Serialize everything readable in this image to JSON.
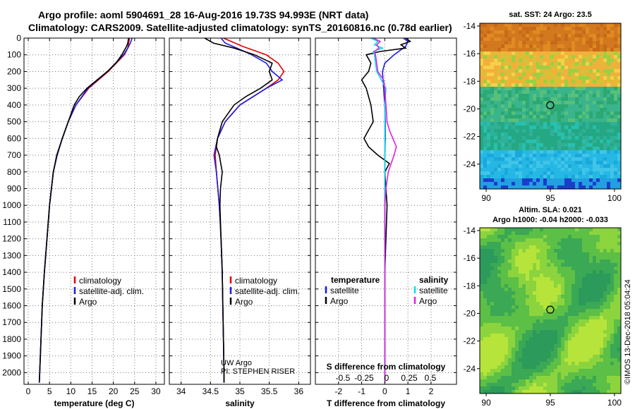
{
  "header": {
    "line1": "Argo profile: aoml 5904691_28 16-Aug-2016 19.73S 94.993E (NRT data)",
    "line2": "Climatology: CARS2009. Satellite-adjusted climatology: synTS_20160816.nc (0.78d earlier)"
  },
  "colors": {
    "climatology": "#e00000",
    "satellite": "#1a1adf",
    "argo": "#000000",
    "salinity_sat": "#00e0e8",
    "salinity_argo": "#e020e0",
    "marker": "#000000"
  },
  "credit": {
    "line1": "UW Argo",
    "line2": "PI: STEPHEN RISER"
  },
  "watermark": "©IMOS 13-Dec-2018 05:04:24",
  "chart_data": [
    {
      "id": "temperature",
      "type": "line",
      "xlabel": "temperature (deg C)",
      "ylabel": "",
      "xlim": [
        -1,
        32
      ],
      "ylim": [
        2070,
        0
      ],
      "xticks": [
        0,
        5,
        10,
        15,
        20,
        25,
        30
      ],
      "yticks": [
        0,
        100,
        200,
        300,
        400,
        500,
        600,
        700,
        800,
        900,
        1000,
        1100,
        1200,
        1300,
        1400,
        1500,
        1600,
        1700,
        1800,
        1900,
        2000
      ],
      "legend": [
        "climatology",
        "satellite-adj. clim.",
        "Argo"
      ],
      "series": [
        {
          "name": "climatology",
          "depth": [
            0,
            60,
            100,
            200,
            300,
            400,
            500,
            600,
            700,
            800,
            1000,
            1200,
            1400,
            1600,
            1800,
            2000,
            2060
          ],
          "values": [
            23.8,
            23.4,
            22.6,
            18.8,
            14.2,
            11.2,
            9.4,
            8.0,
            6.8,
            5.9,
            5.0,
            4.4,
            3.8,
            3.3,
            3.0,
            2.7,
            2.6
          ]
        },
        {
          "name": "satellite-adj. clim.",
          "depth": [
            0,
            30,
            60,
            100,
            200,
            300,
            400,
            500,
            600,
            700,
            800,
            1000,
            1200,
            1400,
            1600,
            1800,
            2000,
            2060
          ],
          "values": [
            24.4,
            24.0,
            23.4,
            22.4,
            18.6,
            14.0,
            11.2,
            9.4,
            8.0,
            6.8,
            5.9,
            5.0,
            4.4,
            3.8,
            3.3,
            3.0,
            2.7,
            2.6
          ]
        },
        {
          "name": "Argo",
          "depth": [
            0,
            30,
            50,
            100,
            150,
            200,
            250,
            300,
            350,
            400,
            500,
            600,
            700,
            800,
            1000,
            1200,
            1400,
            1600,
            1800,
            2000,
            2060
          ],
          "values": [
            23.6,
            23.4,
            23.1,
            22.0,
            20.6,
            18.6,
            16.2,
            13.8,
            12.0,
            10.8,
            9.4,
            8.0,
            6.7,
            5.9,
            5.0,
            4.4,
            3.8,
            3.3,
            3.0,
            2.7,
            2.6
          ]
        }
      ]
    },
    {
      "id": "salinity",
      "type": "line",
      "xlabel": "salinity",
      "xlim": [
        33.8,
        36.2
      ],
      "ylim": [
        2070,
        0
      ],
      "xticks": [
        34,
        34.5,
        35,
        35.5,
        36
      ],
      "legend": [
        "climatology",
        "satellite-adj. clim.",
        "Argo"
      ],
      "series": [
        {
          "name": "climatology",
          "depth": [
            0,
            50,
            100,
            150,
            200,
            250,
            300,
            400,
            500,
            600,
            700,
            800,
            1000,
            1200,
            1400,
            1600,
            1800,
            2000,
            2060
          ],
          "values": [
            34.72,
            35.05,
            35.45,
            35.65,
            35.75,
            35.65,
            35.45,
            35.0,
            34.75,
            34.62,
            34.58,
            34.6,
            34.65,
            34.68,
            34.7,
            34.71,
            34.72,
            34.73,
            34.73
          ]
        },
        {
          "name": "satellite-adj. clim.",
          "depth": [
            0,
            30,
            60,
            100,
            150,
            200,
            250,
            300,
            400,
            500,
            600,
            700,
            800,
            1000,
            1200,
            1400,
            1600,
            1800,
            2000,
            2060
          ],
          "values": [
            34.68,
            34.75,
            34.95,
            35.2,
            35.45,
            35.55,
            35.72,
            35.45,
            35.0,
            34.75,
            34.62,
            34.56,
            34.6,
            34.65,
            34.68,
            34.7,
            34.71,
            34.72,
            34.73,
            34.73
          ]
        },
        {
          "name": "Argo",
          "depth": [
            0,
            30,
            60,
            100,
            150,
            200,
            250,
            300,
            350,
            400,
            500,
            600,
            650,
            700,
            800,
            900,
            1000,
            1200,
            1400,
            1600,
            1800,
            2000,
            2060
          ],
          "values": [
            34.4,
            34.55,
            34.9,
            35.25,
            35.55,
            35.5,
            35.55,
            35.35,
            35.1,
            34.9,
            34.7,
            34.62,
            34.6,
            34.65,
            34.7,
            34.67,
            34.66,
            34.68,
            34.7,
            34.71,
            34.72,
            34.73,
            34.73
          ]
        }
      ]
    },
    {
      "id": "difference",
      "type": "line",
      "xlabel": "T difference from climatology",
      "secondary_xlabel": "S difference from climatology",
      "xlim": [
        -3,
        3.1
      ],
      "ylim": [
        2070,
        0
      ],
      "xticks": [
        -2,
        -1,
        0,
        1,
        2
      ],
      "secondary_xticks": [
        "-0.5",
        "-0.25",
        "0",
        "0.25",
        "0.5"
      ],
      "legend_left": {
        "title": "temperature",
        "items": [
          "satellite",
          "Argo"
        ]
      },
      "legend_right": {
        "title": "salinity",
        "items": [
          "satellite",
          "Argo"
        ]
      },
      "series": [
        {
          "name": "T satellite",
          "depth": [
            0,
            20,
            50,
            100,
            150,
            200,
            300,
            400,
            500,
            600,
            700,
            800,
            900,
            1000,
            1200,
            1400,
            1600,
            1800,
            2000,
            2060
          ],
          "values": [
            0.8,
            1.0,
            0.9,
            0.4,
            0.0,
            -0.1,
            -0.05,
            0.0,
            0.02,
            0.02,
            0.0,
            0.0,
            0.0,
            0.0,
            0.0,
            0.0,
            0.0,
            0.0,
            0.0,
            0.0
          ]
        },
        {
          "name": "T Argo",
          "depth": [
            0,
            20,
            40,
            60,
            80,
            100,
            150,
            200,
            250,
            300,
            400,
            500,
            550,
            600,
            650,
            700,
            750,
            800,
            900,
            1000,
            1200,
            1400,
            1600,
            1800,
            2000,
            2060
          ],
          "values": [
            0.9,
            1.1,
            0.7,
            0.9,
            -0.2,
            -0.8,
            -0.6,
            -0.7,
            -1.0,
            -0.8,
            -0.6,
            -0.5,
            -0.7,
            -0.9,
            -0.7,
            -0.3,
            0.2,
            0.0,
            0.05,
            0.1,
            0.05,
            0.0,
            0.0,
            0.0,
            0.0,
            0.0
          ]
        },
        {
          "name": "S satellite",
          "depth": [
            0,
            20,
            40,
            60,
            80,
            100,
            150,
            200,
            300,
            400,
            500,
            600,
            700,
            800,
            900,
            1000,
            1200,
            1400,
            1600,
            1800,
            2000,
            2060
          ],
          "values": [
            -0.6,
            -0.3,
            -0.45,
            -0.1,
            -0.5,
            -0.45,
            -0.4,
            -0.35,
            0.05,
            0.0,
            0.0,
            0.0,
            0.0,
            0.0,
            0.0,
            0.0,
            0.0,
            0.0,
            0.0,
            0.0,
            0.0,
            0.0
          ]
        },
        {
          "name": "S Argo",
          "depth": [
            0,
            20,
            40,
            60,
            80,
            100,
            150,
            200,
            250,
            300,
            400,
            500,
            550,
            600,
            650,
            700,
            800,
            900,
            1000,
            1200,
            1400,
            1600,
            1800,
            2000,
            2060
          ],
          "values": [
            -0.5,
            -0.2,
            -0.35,
            -0.25,
            -0.45,
            -0.4,
            -0.35,
            -0.3,
            -0.05,
            0.0,
            0.05,
            0.1,
            0.2,
            0.35,
            0.5,
            0.4,
            0.15,
            0.05,
            0.0,
            0.0,
            0.0,
            0.0,
            0.0,
            0.0,
            0.0
          ]
        }
      ]
    },
    {
      "id": "sst_map",
      "type": "heatmap",
      "title": "sat. SST: 24 Argo: 23.5",
      "xlim": [
        89.5,
        100.5
      ],
      "ylim": [
        -25.8,
        -13.8
      ],
      "xticks": [
        90,
        95,
        100
      ],
      "yticks": [
        -14,
        -16,
        -18,
        -20,
        -22,
        -24
      ],
      "marker": {
        "lon": 94.993,
        "lat": -19.73
      }
    },
    {
      "id": "sla_map",
      "type": "heatmap",
      "title": "Altim. SLA: 0.021",
      "subtitle": "Argo h1000: -0.04 h2000: -0.033",
      "xlim": [
        89.5,
        100.5
      ],
      "ylim": [
        -25.8,
        -13.8
      ],
      "xticks": [
        90,
        95,
        100
      ],
      "yticks": [
        -14,
        -16,
        -18,
        -20,
        -22,
        -24
      ],
      "marker": {
        "lon": 94.993,
        "lat": -19.73
      }
    }
  ]
}
